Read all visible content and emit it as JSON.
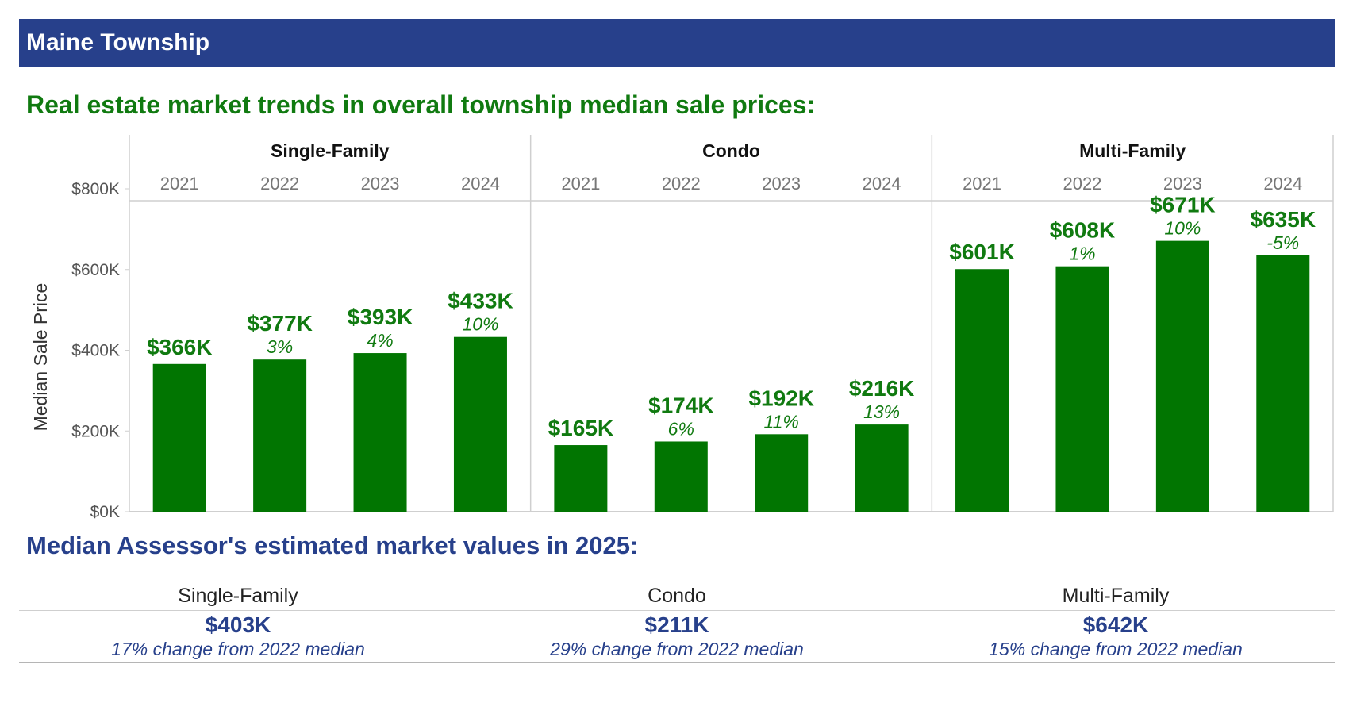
{
  "header": {
    "title": "Maine Township",
    "background": "#27408b"
  },
  "trends": {
    "title": "Real estate market trends in overall township median sale prices:"
  },
  "chart_data": {
    "type": "bar",
    "ylabel": "Median Sale Price",
    "ylim": [
      0,
      800
    ],
    "yticks": [
      "$0K",
      "$200K",
      "$400K",
      "$600K",
      "$800K"
    ],
    "ytick_values": [
      0,
      200,
      400,
      600,
      800
    ],
    "bar_color": "#017501",
    "label_color": "#107a10",
    "grid": false,
    "panels": [
      {
        "name": "Single-Family",
        "categories": [
          "2021",
          "2022",
          "2023",
          "2024"
        ],
        "values": [
          366,
          377,
          393,
          433
        ],
        "value_labels": [
          "$366K",
          "$377K",
          "$393K",
          "$433K"
        ],
        "change_labels": [
          "",
          "3%",
          "4%",
          "10%"
        ]
      },
      {
        "name": "Condo",
        "categories": [
          "2021",
          "2022",
          "2023",
          "2024"
        ],
        "values": [
          165,
          174,
          192,
          216
        ],
        "value_labels": [
          "$165K",
          "$174K",
          "$192K",
          "$216K"
        ],
        "change_labels": [
          "",
          "6%",
          "11%",
          "13%"
        ]
      },
      {
        "name": "Multi-Family",
        "categories": [
          "2021",
          "2022",
          "2023",
          "2024"
        ],
        "values": [
          601,
          608,
          671,
          635
        ],
        "value_labels": [
          "$601K",
          "$608K",
          "$671K",
          "$635K"
        ],
        "change_labels": [
          "",
          "1%",
          "10%",
          "-5%"
        ]
      }
    ]
  },
  "assessor": {
    "title": "Median Assessor's estimated market values in 2025:",
    "columns": [
      {
        "label": "Single-Family",
        "value": "$403K",
        "change": "17% change from 2022 median"
      },
      {
        "label": "Condo",
        "value": "$211K",
        "change": "29% change from 2022 median"
      },
      {
        "label": "Multi-Family",
        "value": "$642K",
        "change": "15% change from 2022 median"
      }
    ]
  }
}
